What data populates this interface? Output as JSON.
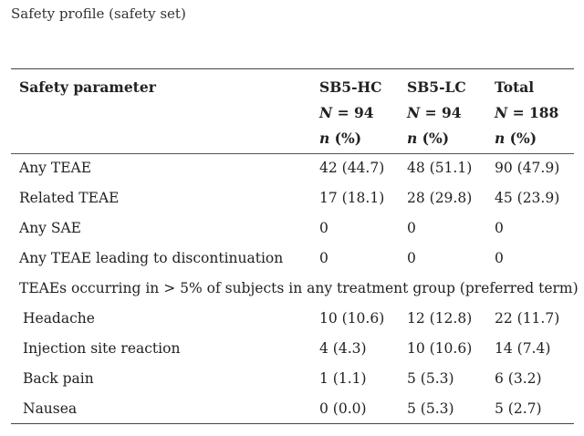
{
  "caption": "Safety profile (safety set)",
  "header": {
    "param": "Safety parameter",
    "cols": [
      {
        "name": "SB5-HC",
        "n_label": "N",
        "n_eq": " = 94",
        "unit_i": "n",
        "unit_rest": " (%)"
      },
      {
        "name": "SB5-LC",
        "n_label": "N",
        "n_eq": " = 94",
        "unit_i": "n",
        "unit_rest": " (%)"
      },
      {
        "name": "Total",
        "n_label": "N",
        "n_eq": " = 188",
        "unit_i": "n",
        "unit_rest": " (%)"
      }
    ]
  },
  "rows": [
    {
      "label": "Any TEAE",
      "v": [
        "42 (44.7)",
        "48 (51.1)",
        "90 (47.9)"
      ]
    },
    {
      "label": "Related TEAE",
      "v": [
        "17 (18.1)",
        "28 (29.8)",
        "45 (23.9)"
      ]
    },
    {
      "label": "Any SAE",
      "v": [
        "0",
        "0",
        "0"
      ]
    },
    {
      "label": "Any TEAE leading to discontinuation",
      "v": [
        "0",
        "0",
        "0"
      ]
    }
  ],
  "section_label": "TEAEs occurring in > 5% of subjects in any treatment group (preferred term)",
  "sub_rows": [
    {
      "label": "Headache",
      "v": [
        "10 (10.6)",
        "12 (12.8)",
        "22 (11.7)"
      ]
    },
    {
      "label": "Injection site reaction",
      "v": [
        "4 (4.3)",
        "10 (10.6)",
        "14 (7.4)"
      ]
    },
    {
      "label": "Back pain",
      "v": [
        "1 (1.1)",
        "5 (5.3)",
        "6 (3.2)"
      ]
    },
    {
      "label": "Nausea",
      "v": [
        "0 (0.0)",
        "5 (5.3)",
        "5 (2.7)"
      ]
    }
  ]
}
